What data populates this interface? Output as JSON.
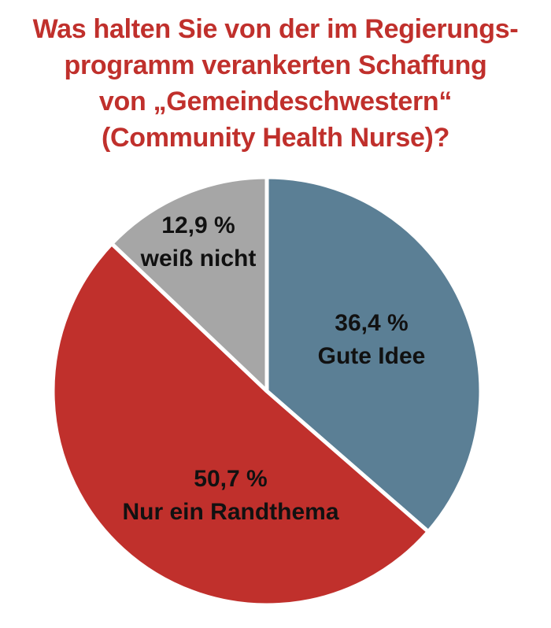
{
  "chart_data": {
    "type": "pie",
    "title_lines": [
      "Was halten Sie von der im Regierungs-",
      "programm verankerten Schaffung",
      "von „Gemeindeschwestern“",
      "(Community Health Nurse)?"
    ],
    "slices": [
      {
        "label": "Gute Idee",
        "value": 36.4,
        "value_text": "36,4 %",
        "color": "#5b7f95"
      },
      {
        "label": "Nur ein Randthema",
        "value": 50.7,
        "value_text": "50,7 %",
        "color": "#c0302c"
      },
      {
        "label": "weiß nicht",
        "value": 12.9,
        "value_text": "12,9 %",
        "color": "#a6a6a6"
      }
    ],
    "start_angle_deg": 0,
    "direction": "clockwise",
    "separator_color": "#ffffff"
  }
}
